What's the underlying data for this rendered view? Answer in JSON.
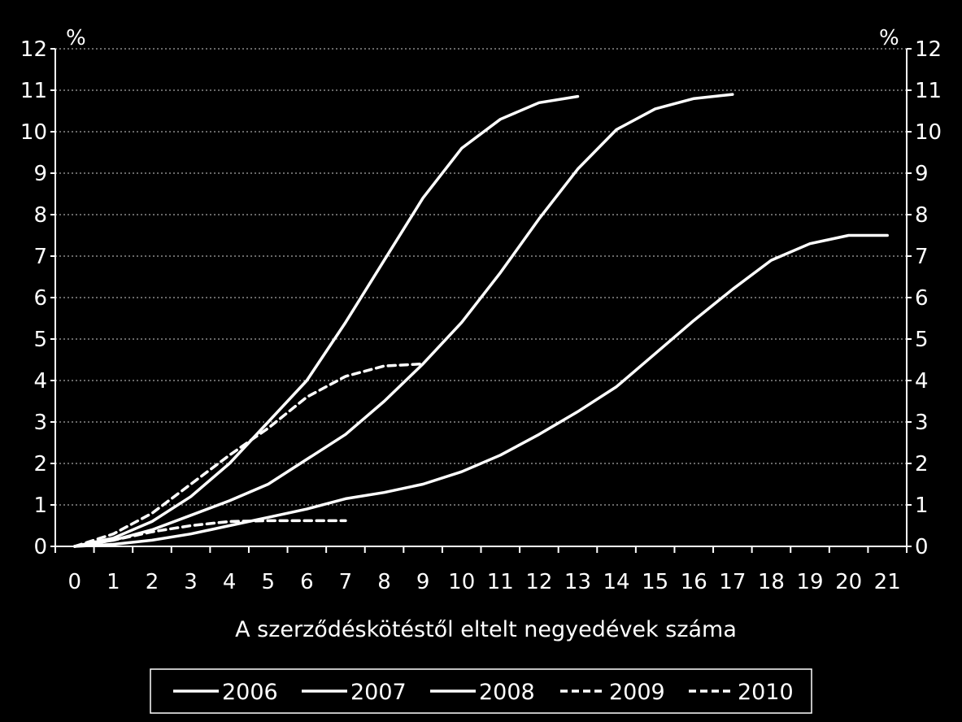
{
  "chart_data": {
    "type": "line",
    "xlabel": "A szerződéskötéstől eltelt negyedévek száma",
    "y_unit_left": "%",
    "y_unit_right": "%",
    "ylim": [
      0,
      12
    ],
    "xlim": [
      0,
      21
    ],
    "x_ticks": [
      0,
      1,
      2,
      3,
      4,
      5,
      6,
      7,
      8,
      9,
      10,
      11,
      12,
      13,
      14,
      15,
      16,
      17,
      18,
      19,
      20,
      21
    ],
    "y_ticks": [
      0,
      1,
      2,
      3,
      4,
      5,
      6,
      7,
      8,
      9,
      10,
      11,
      12
    ],
    "grid": "horizontal dotted",
    "legend_position": "bottom",
    "series": [
      {
        "name": "2006",
        "style": "solid",
        "color": "#ffffff",
        "x": [
          0,
          1,
          2,
          3,
          4,
          5,
          6,
          7,
          8,
          9,
          10,
          11,
          12,
          13
        ],
        "y": [
          0,
          0.2,
          0.6,
          1.2,
          2.0,
          3.0,
          4.0,
          5.4,
          6.9,
          8.4,
          9.6,
          10.3,
          10.7,
          10.85
        ]
      },
      {
        "name": "2007",
        "style": "solid",
        "color": "#ffffff",
        "x": [
          0,
          1,
          2,
          3,
          4,
          5,
          6,
          7,
          8,
          9,
          10,
          11,
          12,
          13,
          14,
          15,
          16,
          17
        ],
        "y": [
          0,
          0.15,
          0.4,
          0.75,
          1.1,
          1.5,
          2.1,
          2.7,
          3.5,
          4.4,
          5.4,
          6.6,
          7.9,
          9.1,
          10.05,
          10.55,
          10.8,
          10.9
        ]
      },
      {
        "name": "2008",
        "style": "solid",
        "color": "#ffffff",
        "x": [
          0,
          1,
          2,
          3,
          4,
          5,
          6,
          7,
          8,
          9,
          10,
          11,
          12,
          13,
          14,
          15,
          16,
          17,
          18,
          19,
          20,
          21
        ],
        "y": [
          0,
          0.05,
          0.15,
          0.3,
          0.5,
          0.7,
          0.9,
          1.15,
          1.3,
          1.5,
          1.8,
          2.2,
          2.7,
          3.25,
          3.85,
          4.65,
          5.45,
          6.2,
          6.9,
          7.3,
          7.5,
          7.5
        ]
      },
      {
        "name": "2009",
        "style": "dashed",
        "color": "#ffffff",
        "x": [
          0,
          1,
          2,
          3,
          4,
          5,
          6,
          7,
          8,
          9
        ],
        "y": [
          0,
          0.3,
          0.8,
          1.5,
          2.2,
          2.85,
          3.6,
          4.1,
          4.35,
          4.4
        ]
      },
      {
        "name": "2010",
        "style": "dashed",
        "color": "#ffffff",
        "x": [
          0,
          1,
          2,
          3,
          4,
          5,
          6,
          7
        ],
        "y": [
          0,
          0.15,
          0.35,
          0.5,
          0.6,
          0.62,
          0.62,
          0.62
        ]
      }
    ]
  }
}
